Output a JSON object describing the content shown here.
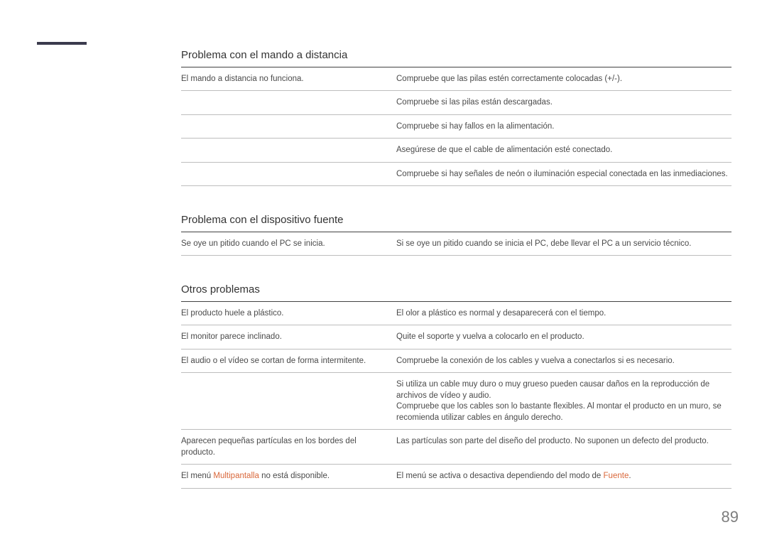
{
  "page_number": "89",
  "sections": [
    {
      "title": "Problema con el mando a distancia",
      "rows": [
        {
          "left": "El mando a distancia no funciona.",
          "right": "Compruebe que las pilas estén correctamente colocadas (+/-)."
        },
        {
          "left": "",
          "right": "Compruebe si las pilas están descargadas.",
          "continuation": true
        },
        {
          "left": "",
          "right": "Compruebe si hay fallos en la alimentación.",
          "continuation": true
        },
        {
          "left": "",
          "right": "Asegúrese de que el cable de alimentación esté conectado.",
          "continuation": true
        },
        {
          "left": "",
          "right": "Compruebe si hay señales de neón o iluminación especial conectada en las inmediaciones.",
          "continuation": true
        }
      ]
    },
    {
      "title": "Problema con el dispositivo fuente",
      "rows": [
        {
          "left": "Se oye un pitido cuando el PC se inicia.",
          "right": "Si se oye un pitido cuando se inicia el PC, debe llevar el PC a un servicio técnico."
        }
      ]
    },
    {
      "title": "Otros problemas",
      "rows": [
        {
          "left": "El producto huele a plástico.",
          "right": "El olor a plástico es normal y desaparecerá con el tiempo."
        },
        {
          "left": "El monitor parece inclinado.",
          "right": "Quite el soporte y vuelva a colocarlo en el producto."
        },
        {
          "left": "El audio o el vídeo se cortan de forma intermitente.",
          "right": "Compruebe la conexión de los cables y vuelva a conectarlos si es necesario."
        },
        {
          "left": "",
          "right": "Si utiliza un cable muy duro o muy grueso pueden causar daños en la reproducción de archivos de vídeo y audio.\nCompruebe que los cables son lo bastante flexibles. Al montar el producto en un muro, se recomienda utilizar cables en ángulo derecho.",
          "continuation": true
        },
        {
          "left": "Aparecen pequeñas partículas en los bordes del producto.",
          "right": "Las partículas son parte del diseño del producto. No suponen un defecto del producto."
        },
        {
          "left_parts": [
            "El menú ",
            {
              "text": "Multipantalla",
              "hl": true
            },
            " no está disponible."
          ],
          "right_parts": [
            "El menú se activa o desactiva dependiendo del modo de ",
            {
              "text": "Fuente",
              "hl": true
            },
            "."
          ]
        }
      ]
    }
  ]
}
